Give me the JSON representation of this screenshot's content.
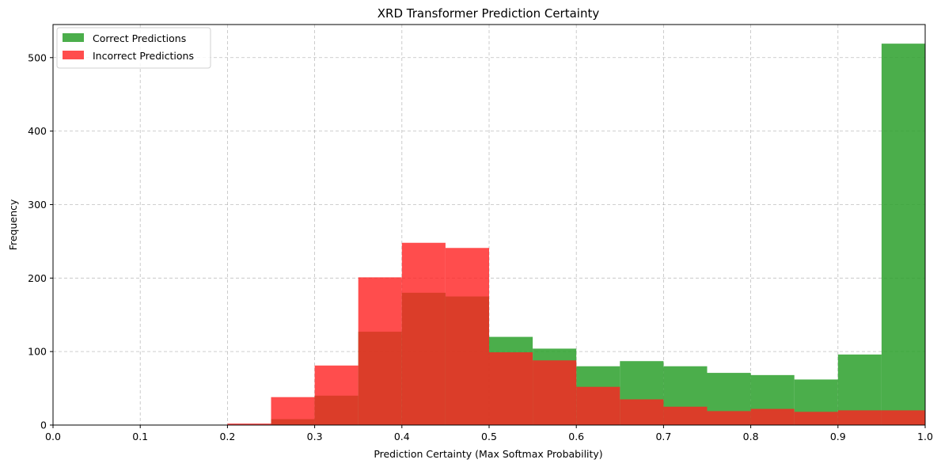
{
  "chart_data": {
    "type": "bar",
    "title": "XRD Transformer Prediction Certainty",
    "xlabel": "Prediction Certainty (Max Softmax Probability)",
    "ylabel": "Frequency",
    "xlim": [
      0.0,
      1.0
    ],
    "ylim": [
      0,
      545
    ],
    "grid": true,
    "legend_position": "top-left",
    "x_ticks": [
      "0.0",
      "0.1",
      "0.2",
      "0.3",
      "0.4",
      "0.5",
      "0.6",
      "0.7",
      "0.8",
      "0.9",
      "1.0"
    ],
    "y_ticks": [
      "0",
      "100",
      "200",
      "300",
      "400",
      "500"
    ],
    "bin_edges": [
      0.2,
      0.25,
      0.3,
      0.35,
      0.4,
      0.45,
      0.5,
      0.55,
      0.6,
      0.65,
      0.7,
      0.75,
      0.8,
      0.85,
      0.9,
      0.95,
      1.0
    ],
    "series": [
      {
        "name": "Correct Predictions",
        "color": "#2ca02c",
        "alpha": 0.85,
        "values": [
          0,
          8,
          40,
          127,
          180,
          175,
          120,
          104,
          80,
          87,
          80,
          71,
          68,
          62,
          96,
          519
        ]
      },
      {
        "name": "Incorrect Predictions",
        "color": "#ff2020",
        "alpha": 0.8,
        "values": [
          2,
          38,
          81,
          201,
          248,
          241,
          99,
          88,
          52,
          35,
          25,
          19,
          22,
          18,
          20,
          20
        ]
      }
    ]
  }
}
